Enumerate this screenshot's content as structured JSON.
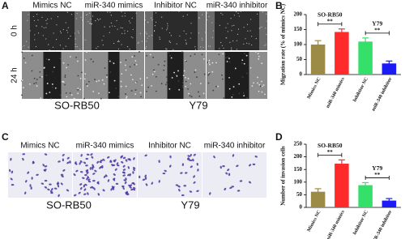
{
  "panels": {
    "A": {
      "letter": "A",
      "columns": [
        "Mimics NC",
        "miR-340 mimics",
        "Inhibitor NC",
        "miR-340 inhibitor"
      ],
      "rows": [
        "0 h",
        "24 h"
      ],
      "cell_lines": [
        "SO-RB50",
        "Y79"
      ]
    },
    "C": {
      "letter": "C",
      "columns": [
        "Mimics NC",
        "miR-340 mimics",
        "Inhibitor NC",
        "miR-340 inhibitor"
      ],
      "cell_lines": [
        "SO-RB50",
        "Y79"
      ]
    }
  },
  "chart_data": [
    {
      "type": "bar",
      "panel": "B",
      "y_label": "Migration rate (% of mimics NC)",
      "categories": [
        "Mimics NC",
        "miR-340 mimics",
        "Inhibitor NC",
        "miR-340 inhibitor"
      ],
      "values": [
        100,
        142,
        110,
        37
      ],
      "errors": [
        13,
        10,
        12,
        8
      ],
      "colors": [
        "#9c8b47",
        "#ff2b2b",
        "#35e06a",
        "#1b1bf5"
      ],
      "ylim": [
        0,
        200
      ],
      "yticks": [
        0,
        50,
        100,
        150,
        200
      ],
      "group_labels": [
        "SO-RB50",
        "Y79"
      ],
      "significance": [
        "**",
        "**"
      ]
    },
    {
      "type": "bar",
      "panel": "D",
      "y_label": "Number of invasion cells",
      "categories": [
        "Mimics NC",
        "miR-340 mimics",
        "Inhibitor NC",
        "miR-340 inhibitor"
      ],
      "values": [
        62,
        173,
        88,
        27
      ],
      "errors": [
        12,
        15,
        10,
        8
      ],
      "colors": [
        "#9c8b47",
        "#ff2b2b",
        "#35e06a",
        "#1b1bf5"
      ],
      "ylim": [
        0,
        250
      ],
      "yticks": [
        0,
        50,
        100,
        150,
        200,
        250
      ],
      "group_labels": [
        "SO-RB50",
        "Y79"
      ],
      "significance": [
        "**",
        "**"
      ]
    }
  ]
}
